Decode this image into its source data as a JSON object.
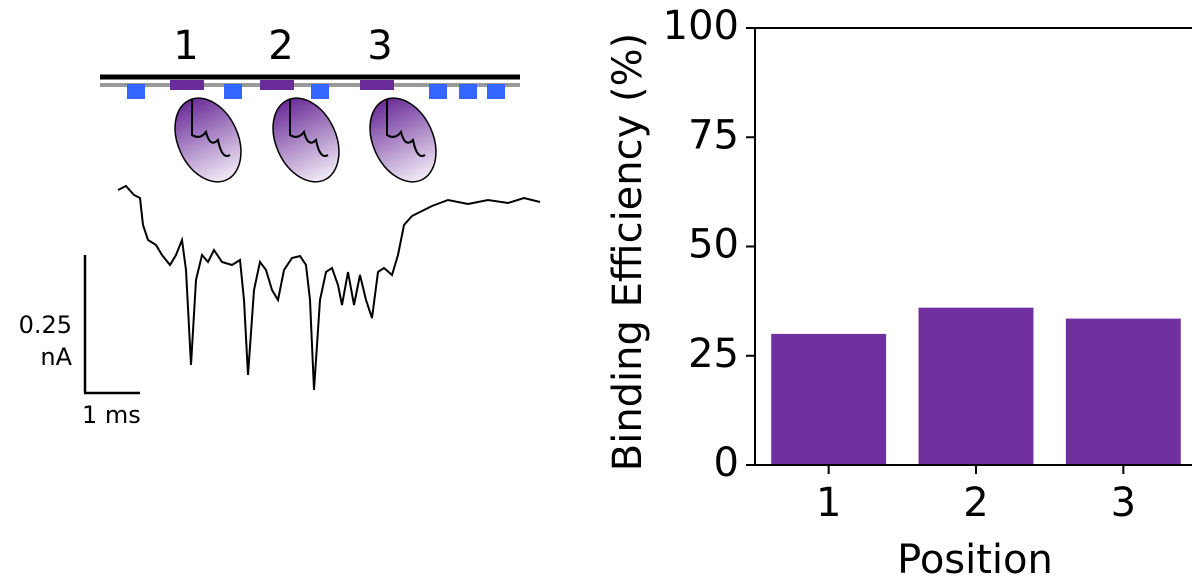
{
  "diagram": {
    "position_labels": [
      "1",
      "2",
      "3"
    ],
    "scale_current": [
      "0.25",
      "nA"
    ],
    "scale_time": "1 ms"
  },
  "chart_data": {
    "type": "bar",
    "categories": [
      "1",
      "2",
      "3"
    ],
    "values": [
      30,
      36,
      33.5
    ],
    "color": "#7030a0",
    "ylim": [
      0,
      100
    ],
    "yticks": [
      0,
      25,
      50,
      75,
      100
    ],
    "xlabel": "Position",
    "ylabel": "Binding Efficiency (%)",
    "grid": false
  }
}
